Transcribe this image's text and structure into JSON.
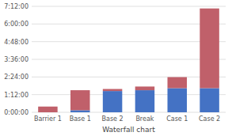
{
  "chart_data": {
    "type": "bar",
    "stacked": true,
    "grid": true,
    "xlabel": "Waterfall chart",
    "categories": [
      "Barrier 1",
      "Base 1",
      "Base 2",
      "Break",
      "Case 1",
      "Case 2"
    ],
    "series": [
      {
        "color": "#4472C4",
        "values": [
          0,
          500,
          5200,
          5400,
          5900,
          5900
        ]
      },
      {
        "color": "#C0606A",
        "values": [
          1400,
          4900,
          500,
          900,
          2700,
          19500
        ]
      }
    ],
    "ylim": [
      0,
      25920
    ],
    "yticks": [
      {
        "value": 0,
        "label": "0:00:00"
      },
      {
        "value": 4320,
        "label": "1:12:00"
      },
      {
        "value": 8640,
        "label": "2:24:00"
      },
      {
        "value": 12960,
        "label": "3:36:00"
      },
      {
        "value": 17280,
        "label": "4:48:00"
      },
      {
        "value": 21600,
        "label": "6:00:00"
      },
      {
        "value": 25920,
        "label": "7:12:00"
      }
    ]
  }
}
